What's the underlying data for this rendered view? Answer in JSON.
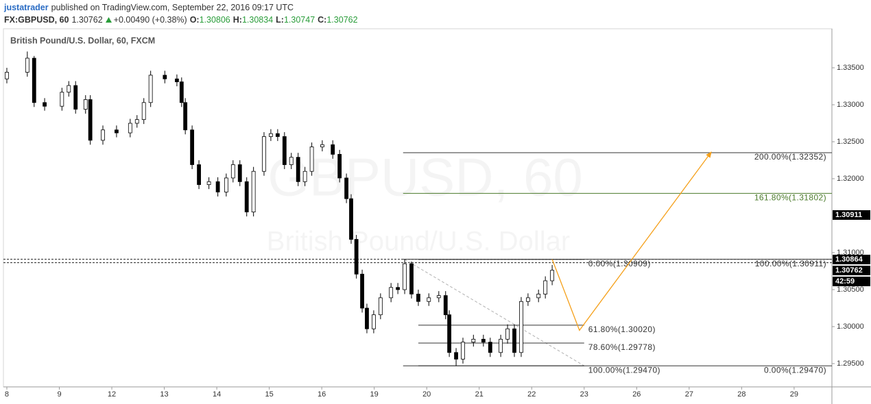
{
  "header": {
    "author": "justatrader",
    "published": "published on TradingView.com, September 22, 2016 09:17 UTC",
    "symbol": "FX:GBPUSD, 60",
    "last": "1.30762",
    "change": "+0.00490 (+0.38%)",
    "o_label": "O:",
    "open": "1.30806",
    "h_label": "H:",
    "high": "1.30834",
    "l_label": "L:",
    "low": "1.30747",
    "c_label": "C:",
    "close": "1.30762"
  },
  "chart_data": {
    "type": "candlestick",
    "legend": "British Pound/U.S. Dollar, 60, FXCM",
    "watermark": [
      "GBPUSD, 60",
      "British Pound/U.S. Dollar"
    ],
    "xlim": [
      -0.065,
      15.72
    ],
    "ylim": [
      1.29185,
      1.34028
    ],
    "xticks": [
      {
        "value": 0,
        "label": "8"
      },
      {
        "value": 1,
        "label": "9"
      },
      {
        "value": 2,
        "label": "12"
      },
      {
        "value": 3,
        "label": "13"
      },
      {
        "value": 4,
        "label": "14"
      },
      {
        "value": 5,
        "label": "15"
      },
      {
        "value": 6,
        "label": "16"
      },
      {
        "value": 7,
        "label": "19"
      },
      {
        "value": 8,
        "label": "20"
      },
      {
        "value": 9,
        "label": "21"
      },
      {
        "value": 10,
        "label": "22"
      },
      {
        "value": 11,
        "label": "23"
      },
      {
        "value": 12,
        "label": "26"
      },
      {
        "value": 13,
        "label": "27"
      },
      {
        "value": 14,
        "label": "28"
      },
      {
        "value": 15,
        "label": "29"
      }
    ],
    "yticks": [
      {
        "value": 1.295,
        "label": "1.29500"
      },
      {
        "value": 1.3,
        "label": "1.30000"
      },
      {
        "value": 1.305,
        "label": "1.30500"
      },
      {
        "value": 1.31,
        "label": "1.31000"
      },
      {
        "value": 1.32,
        "label": "1.32000"
      },
      {
        "value": 1.325,
        "label": "1.32500"
      },
      {
        "value": 1.33,
        "label": "1.33000"
      },
      {
        "value": 1.335,
        "label": "1.33500"
      }
    ],
    "up_color": "#ffffff",
    "down_color": "#000000",
    "candles": {
      "x": [
        0,
        0.39,
        0.52,
        0.72,
        1.05,
        1.18,
        1.31,
        1.5,
        1.59,
        1.83,
        2.09,
        2.35,
        2.48,
        2.61,
        2.74,
        3.01,
        3.24,
        3.33,
        3.4,
        3.53,
        3.66,
        3.85,
        4.02,
        4.18,
        4.31,
        4.44,
        4.57,
        4.7,
        4.9,
        5.03,
        5.16,
        5.29,
        5.42,
        5.55,
        5.68,
        5.81,
        6.01,
        6.21,
        6.34,
        6.47,
        6.56,
        6.66,
        6.77,
        6.86,
        6.99,
        7.12,
        7.32,
        7.45,
        7.58,
        7.71,
        7.84,
        8.04,
        8.23,
        8.36,
        8.43,
        8.56,
        8.69,
        8.89,
        9.08,
        9.21,
        9.41,
        9.54,
        9.67,
        9.8,
        9.93,
        10.13,
        10.26,
        10.39
      ],
      "open": [
        1.3335,
        1.3344,
        1.3363,
        1.3303,
        1.3298,
        1.3317,
        1.3326,
        1.3294,
        1.3307,
        1.3252,
        1.3266,
        1.3262,
        1.3275,
        1.328,
        1.3303,
        1.334,
        1.3335,
        1.3331,
        1.3303,
        1.3266,
        1.3219,
        1.3192,
        1.3196,
        1.3182,
        1.3201,
        1.3219,
        1.3196,
        1.3155,
        1.321,
        1.3257,
        1.3261,
        1.3257,
        1.3219,
        1.3229,
        1.3196,
        1.321,
        1.3243,
        1.3246,
        1.3233,
        1.3201,
        1.3173,
        1.3118,
        1.3071,
        1.3025,
        1.2997,
        1.3016,
        1.3039,
        1.3053,
        1.305,
        1.3085,
        1.3044,
        1.3034,
        1.3039,
        1.3042,
        1.3016,
        1.2965,
        1.2956,
        1.2979,
        1.2983,
        1.2979,
        1.2965,
        1.2983,
        1.2997,
        1.2965,
        1.3034,
        1.3039,
        1.3044,
        1.3062
      ],
      "high": [
        1.335,
        1.3372,
        1.3366,
        1.3309,
        1.3323,
        1.3332,
        1.3332,
        1.3313,
        1.3313,
        1.3272,
        1.3272,
        1.3281,
        1.3286,
        1.3309,
        1.3346,
        1.3346,
        1.3341,
        1.3337,
        1.3309,
        1.3272,
        1.3225,
        1.3202,
        1.3202,
        1.3207,
        1.3225,
        1.3225,
        1.3202,
        1.3216,
        1.3263,
        1.3267,
        1.3267,
        1.3263,
        1.3235,
        1.3235,
        1.3216,
        1.3249,
        1.3252,
        1.3252,
        1.3239,
        1.3207,
        1.3179,
        1.3124,
        1.3077,
        1.3031,
        1.3022,
        1.3045,
        1.3059,
        1.3059,
        1.30909,
        1.3088,
        1.305,
        1.3045,
        1.3048,
        1.3048,
        1.3022,
        1.2971,
        1.2985,
        1.2989,
        1.2989,
        1.2985,
        1.2989,
        1.3003,
        1.3003,
        1.304,
        1.3045,
        1.305,
        1.3068,
        1.30834
      ],
      "low": [
        1.3329,
        1.3338,
        1.3297,
        1.3292,
        1.3292,
        1.3311,
        1.3288,
        1.3288,
        1.3246,
        1.3246,
        1.3256,
        1.3256,
        1.3269,
        1.3274,
        1.3297,
        1.3329,
        1.3325,
        1.3297,
        1.326,
        1.3213,
        1.3186,
        1.3186,
        1.3176,
        1.3176,
        1.3195,
        1.319,
        1.3149,
        1.3149,
        1.3204,
        1.3251,
        1.3251,
        1.3213,
        1.3213,
        1.319,
        1.319,
        1.3204,
        1.3237,
        1.3227,
        1.3195,
        1.3167,
        1.3112,
        1.3065,
        1.3019,
        1.2991,
        1.2991,
        1.301,
        1.3033,
        1.3044,
        1.3044,
        1.3038,
        1.3028,
        1.3028,
        1.3033,
        1.301,
        1.2959,
        1.2947,
        1.295,
        1.2973,
        1.2973,
        1.2959,
        1.2959,
        1.2977,
        1.2959,
        1.2959,
        1.3028,
        1.3033,
        1.3038,
        1.3056
      ],
      "close": [
        1.3344,
        1.3363,
        1.3303,
        1.3298,
        1.3317,
        1.3326,
        1.3294,
        1.3307,
        1.3252,
        1.3266,
        1.3262,
        1.3275,
        1.328,
        1.3303,
        1.334,
        1.3335,
        1.3331,
        1.3303,
        1.3266,
        1.3219,
        1.3192,
        1.3196,
        1.3182,
        1.3201,
        1.3219,
        1.3196,
        1.3155,
        1.321,
        1.3257,
        1.3261,
        1.3257,
        1.3219,
        1.3229,
        1.3196,
        1.321,
        1.3243,
        1.3246,
        1.3233,
        1.3201,
        1.3173,
        1.3118,
        1.3071,
        1.3025,
        1.2997,
        1.3016,
        1.3039,
        1.3053,
        1.305,
        1.3085,
        1.3044,
        1.3034,
        1.3039,
        1.3042,
        1.3016,
        1.2965,
        1.2956,
        1.2979,
        1.2983,
        1.2979,
        1.2965,
        1.2983,
        1.2997,
        1.2965,
        1.3034,
        1.3039,
        1.3044,
        1.3062,
        1.30762
      ]
    },
    "price_lines": [
      1.30911,
      1.30864
    ],
    "badges": [
      1.30911,
      1.30864,
      1.30762,
      "42:59"
    ],
    "trendline": {
      "x": [
        7.58,
        11.0
      ],
      "values": [
        1.30909,
        1.2947
      ],
      "color": "#b0b0b0"
    },
    "projection": {
      "x": [
        10.39,
        10.91,
        13.42
      ],
      "values": [
        1.3091,
        1.2995,
        1.3236
      ],
      "color": "#f5a01a"
    },
    "fib_sets": [
      {
        "x": [
          7.84,
          11.0
        ],
        "label_side": "outside",
        "levels": [
          {
            "value": 1.30909,
            "label": "0.00%(1.30909)",
            "color": "#333333"
          },
          {
            "value": 1.3002,
            "label": "61.80%(1.30020)",
            "color": "#333333"
          },
          {
            "value": 1.29778,
            "label": "78.60%(1.29778)",
            "color": "#333333"
          },
          {
            "value": 1.2947,
            "label": "100.00%(1.29470)",
            "color": "#333333"
          }
        ]
      },
      {
        "x": [
          7.55,
          15.72
        ],
        "label_side": "inside",
        "levels": [
          {
            "value": 1.32352,
            "label": "200.00%(1.32352)",
            "color": "#333333"
          },
          {
            "value": 1.31802,
            "label": "161.80%(1.31802)",
            "color": "#4a7a2a"
          },
          {
            "value": 1.30911,
            "label": "100.00%(1.30911)",
            "color": "#333333"
          },
          {
            "value": 1.2947,
            "label": "0.00%(1.29470)",
            "color": "#333333"
          }
        ]
      }
    ]
  }
}
